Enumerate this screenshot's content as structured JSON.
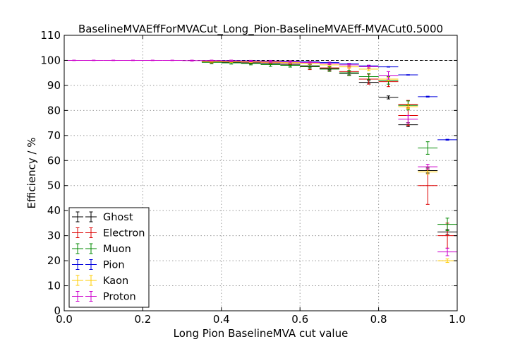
{
  "chart_data": {
    "type": "scatter",
    "title": "BaselineMVAEffForMVACut_Long_Pion-BaselineMVAEff-MVACut0.5000",
    "xlabel": "Long Pion BaselineMVA cut value",
    "ylabel": "Efficiency / %",
    "xlim": [
      0.0,
      1.0
    ],
    "ylim": [
      0,
      110
    ],
    "xticks": [
      "0.0",
      "0.2",
      "0.4",
      "0.6",
      "0.8",
      "1.0"
    ],
    "yticks": [
      "0",
      "10",
      "20",
      "30",
      "40",
      "50",
      "60",
      "70",
      "80",
      "90",
      "100",
      "110"
    ],
    "grid": true,
    "legend_position": "lower-left",
    "reference_line": 100,
    "series": [
      {
        "name": "Ghost",
        "color": "#000000",
        "points": [
          {
            "x": 0.375,
            "xerr": 0.025,
            "y": 99.5,
            "yerr": 0.3
          },
          {
            "x": 0.425,
            "xerr": 0.025,
            "y": 99.3,
            "yerr": 0.3
          },
          {
            "x": 0.475,
            "xerr": 0.025,
            "y": 99.0,
            "yerr": 0.4
          },
          {
            "x": 0.525,
            "xerr": 0.025,
            "y": 98.8,
            "yerr": 0.4
          },
          {
            "x": 0.575,
            "xerr": 0.025,
            "y": 98.4,
            "yerr": 0.5
          },
          {
            "x": 0.625,
            "xerr": 0.025,
            "y": 97.8,
            "yerr": 0.5
          },
          {
            "x": 0.675,
            "xerr": 0.025,
            "y": 96.8,
            "yerr": 0.6
          },
          {
            "x": 0.725,
            "xerr": 0.025,
            "y": 94.8,
            "yerr": 0.6
          },
          {
            "x": 0.775,
            "xerr": 0.025,
            "y": 91.2,
            "yerr": 0.6
          },
          {
            "x": 0.825,
            "xerr": 0.025,
            "y": 85.2,
            "yerr": 0.6
          },
          {
            "x": 0.875,
            "xerr": 0.025,
            "y": 74.3,
            "yerr": 0.8
          },
          {
            "x": 0.925,
            "xerr": 0.025,
            "y": 56.0,
            "yerr": 1.0
          },
          {
            "x": 0.975,
            "xerr": 0.025,
            "y": 31.5,
            "yerr": 1.0
          }
        ]
      },
      {
        "name": "Electron",
        "color": "#dd0000",
        "points": [
          {
            "x": 0.375,
            "xerr": 0.025,
            "y": 99.5,
            "yerr": 0.5
          },
          {
            "x": 0.425,
            "xerr": 0.025,
            "y": 99.5,
            "yerr": 0.5
          },
          {
            "x": 0.475,
            "xerr": 0.025,
            "y": 99.4,
            "yerr": 0.6
          },
          {
            "x": 0.525,
            "xerr": 0.025,
            "y": 99.2,
            "yerr": 0.7
          },
          {
            "x": 0.575,
            "xerr": 0.025,
            "y": 99.0,
            "yerr": 0.8
          },
          {
            "x": 0.625,
            "xerr": 0.025,
            "y": 97.5,
            "yerr": 1.2
          },
          {
            "x": 0.675,
            "xerr": 0.025,
            "y": 97.0,
            "yerr": 1.2
          },
          {
            "x": 0.725,
            "xerr": 0.025,
            "y": 95.5,
            "yerr": 1.5
          },
          {
            "x": 0.775,
            "xerr": 0.025,
            "y": 92.5,
            "yerr": 2.0
          },
          {
            "x": 0.825,
            "xerr": 0.025,
            "y": 91.5,
            "yerr": 2.0
          },
          {
            "x": 0.875,
            "xerr": 0.025,
            "y": 78.0,
            "yerr": 4.0
          },
          {
            "x": 0.875,
            "xerr": 0.025,
            "y": 82.5,
            "yerr": 1.5
          },
          {
            "x": 0.925,
            "xerr": 0.025,
            "y": 50.0,
            "yerr": 7.5
          },
          {
            "x": 0.975,
            "xerr": 0.025,
            "y": 30.0,
            "yerr": 5.0
          }
        ]
      },
      {
        "name": "Muon",
        "color": "#008800",
        "points": [
          {
            "x": 0.375,
            "xerr": 0.025,
            "y": 99.2,
            "yerr": 0.5
          },
          {
            "x": 0.425,
            "xerr": 0.025,
            "y": 99.0,
            "yerr": 0.5
          },
          {
            "x": 0.475,
            "xerr": 0.025,
            "y": 98.8,
            "yerr": 0.6
          },
          {
            "x": 0.525,
            "xerr": 0.025,
            "y": 98.3,
            "yerr": 0.7
          },
          {
            "x": 0.575,
            "xerr": 0.025,
            "y": 98.0,
            "yerr": 0.7
          },
          {
            "x": 0.625,
            "xerr": 0.025,
            "y": 97.5,
            "yerr": 0.8
          },
          {
            "x": 0.675,
            "xerr": 0.025,
            "y": 96.5,
            "yerr": 0.9
          },
          {
            "x": 0.725,
            "xerr": 0.025,
            "y": 95.0,
            "yerr": 1.0
          },
          {
            "x": 0.775,
            "xerr": 0.025,
            "y": 93.5,
            "yerr": 1.2
          },
          {
            "x": 0.825,
            "xerr": 0.025,
            "y": 92.0,
            "yerr": 1.5
          },
          {
            "x": 0.875,
            "xerr": 0.025,
            "y": 82.0,
            "yerr": 1.8
          },
          {
            "x": 0.925,
            "xerr": 0.025,
            "y": 65.0,
            "yerr": 2.5
          },
          {
            "x": 0.975,
            "xerr": 0.025,
            "y": 34.5,
            "yerr": 2.5
          }
        ]
      },
      {
        "name": "Pion",
        "color": "#0000dd",
        "points": [
          {
            "x": 0.375,
            "xerr": 0.025,
            "y": 99.9,
            "yerr": 0.1
          },
          {
            "x": 0.425,
            "xerr": 0.025,
            "y": 99.9,
            "yerr": 0.1
          },
          {
            "x": 0.475,
            "xerr": 0.025,
            "y": 99.8,
            "yerr": 0.1
          },
          {
            "x": 0.525,
            "xerr": 0.025,
            "y": 99.7,
            "yerr": 0.1
          },
          {
            "x": 0.575,
            "xerr": 0.025,
            "y": 99.6,
            "yerr": 0.1
          },
          {
            "x": 0.625,
            "xerr": 0.025,
            "y": 99.4,
            "yerr": 0.1
          },
          {
            "x": 0.675,
            "xerr": 0.025,
            "y": 99.1,
            "yerr": 0.1
          },
          {
            "x": 0.725,
            "xerr": 0.025,
            "y": 98.6,
            "yerr": 0.1
          },
          {
            "x": 0.775,
            "xerr": 0.025,
            "y": 97.8,
            "yerr": 0.1
          },
          {
            "x": 0.825,
            "xerr": 0.025,
            "y": 97.4,
            "yerr": 0.1
          },
          {
            "x": 0.875,
            "xerr": 0.025,
            "y": 94.2,
            "yerr": 0.1
          },
          {
            "x": 0.925,
            "xerr": 0.025,
            "y": 85.5,
            "yerr": 0.2
          },
          {
            "x": 0.975,
            "xerr": 0.025,
            "y": 68.3,
            "yerr": 0.2
          }
        ]
      },
      {
        "name": "Kaon",
        "color": "#ffcc00",
        "points": [
          {
            "x": 0.375,
            "xerr": 0.025,
            "y": 99.6,
            "yerr": 0.3
          },
          {
            "x": 0.425,
            "xerr": 0.025,
            "y": 99.5,
            "yerr": 0.3
          },
          {
            "x": 0.475,
            "xerr": 0.025,
            "y": 99.4,
            "yerr": 0.3
          },
          {
            "x": 0.525,
            "xerr": 0.025,
            "y": 99.3,
            "yerr": 0.3
          },
          {
            "x": 0.575,
            "xerr": 0.025,
            "y": 99.1,
            "yerr": 0.4
          },
          {
            "x": 0.625,
            "xerr": 0.025,
            "y": 98.8,
            "yerr": 0.4
          },
          {
            "x": 0.675,
            "xerr": 0.025,
            "y": 98.2,
            "yerr": 0.5
          },
          {
            "x": 0.725,
            "xerr": 0.025,
            "y": 97.4,
            "yerr": 0.5
          },
          {
            "x": 0.775,
            "xerr": 0.025,
            "y": 96.5,
            "yerr": 0.6
          },
          {
            "x": 0.825,
            "xerr": 0.025,
            "y": 92.5,
            "yerr": 0.7
          },
          {
            "x": 0.875,
            "xerr": 0.025,
            "y": 81.5,
            "yerr": 0.8
          },
          {
            "x": 0.925,
            "xerr": 0.025,
            "y": 55.5,
            "yerr": 0.9
          },
          {
            "x": 0.975,
            "xerr": 0.025,
            "y": 20.0,
            "yerr": 0.7
          }
        ]
      },
      {
        "name": "Proton",
        "color": "#cc00cc",
        "points": [
          {
            "x": 0.025,
            "xerr": 0.025,
            "y": 100.0,
            "yerr": 0.1
          },
          {
            "x": 0.075,
            "xerr": 0.025,
            "y": 100.0,
            "yerr": 0.1
          },
          {
            "x": 0.125,
            "xerr": 0.025,
            "y": 100.0,
            "yerr": 0.1
          },
          {
            "x": 0.175,
            "xerr": 0.025,
            "y": 100.0,
            "yerr": 0.1
          },
          {
            "x": 0.225,
            "xerr": 0.025,
            "y": 100.0,
            "yerr": 0.1
          },
          {
            "x": 0.275,
            "xerr": 0.025,
            "y": 100.0,
            "yerr": 0.1
          },
          {
            "x": 0.325,
            "xerr": 0.025,
            "y": 99.9,
            "yerr": 0.2
          },
          {
            "x": 0.375,
            "xerr": 0.025,
            "y": 99.9,
            "yerr": 0.2
          },
          {
            "x": 0.425,
            "xerr": 0.025,
            "y": 99.8,
            "yerr": 0.3
          },
          {
            "x": 0.475,
            "xerr": 0.025,
            "y": 99.7,
            "yerr": 0.3
          },
          {
            "x": 0.525,
            "xerr": 0.025,
            "y": 99.6,
            "yerr": 0.4
          },
          {
            "x": 0.575,
            "xerr": 0.025,
            "y": 99.4,
            "yerr": 0.4
          },
          {
            "x": 0.625,
            "xerr": 0.025,
            "y": 99.1,
            "yerr": 0.5
          },
          {
            "x": 0.675,
            "xerr": 0.025,
            "y": 98.8,
            "yerr": 0.5
          },
          {
            "x": 0.725,
            "xerr": 0.025,
            "y": 98.2,
            "yerr": 0.6
          },
          {
            "x": 0.775,
            "xerr": 0.025,
            "y": 97.5,
            "yerr": 0.6
          },
          {
            "x": 0.825,
            "xerr": 0.025,
            "y": 94.0,
            "yerr": 1.5
          },
          {
            "x": 0.875,
            "xerr": 0.025,
            "y": 76.5,
            "yerr": 1.5
          },
          {
            "x": 0.925,
            "xerr": 0.025,
            "y": 57.5,
            "yerr": 1.0
          },
          {
            "x": 0.975,
            "xerr": 0.025,
            "y": 23.5,
            "yerr": 1.5
          }
        ]
      }
    ]
  }
}
